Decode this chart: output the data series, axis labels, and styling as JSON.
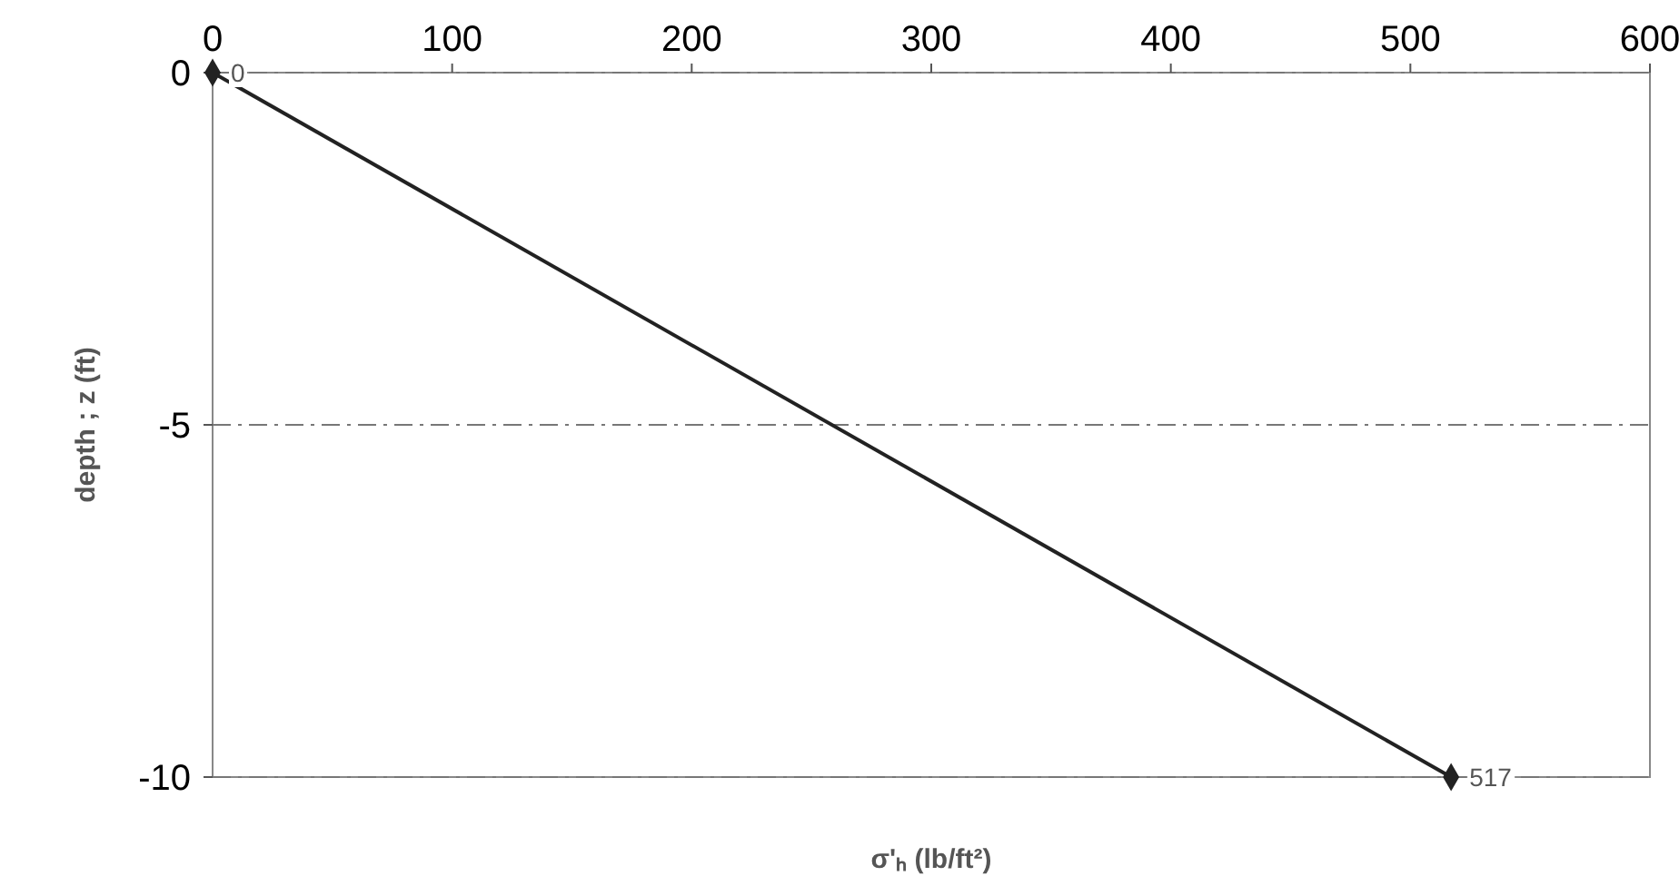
{
  "chart_data": {
    "type": "line",
    "xlabel": "σ'ₕ     (lb/ft²)",
    "ylabel": "depth ; z (ft)",
    "x": [
      0,
      517
    ],
    "series": [
      {
        "color": "#222222",
        "values": [
          0,
          -10
        ]
      }
    ],
    "annotations": [
      {
        "text": "0",
        "x": 0,
        "y": 0
      },
      {
        "text": "517",
        "x": 517,
        "y": -10
      }
    ],
    "xlim": [
      0,
      600
    ],
    "xticks": [
      0,
      100,
      200,
      300,
      400,
      500,
      600
    ],
    "ylim": [
      -10,
      0
    ],
    "yticks": [
      0,
      -5,
      -10
    ],
    "grid": "y",
    "marker": "diamond",
    "line_style": "solid"
  }
}
